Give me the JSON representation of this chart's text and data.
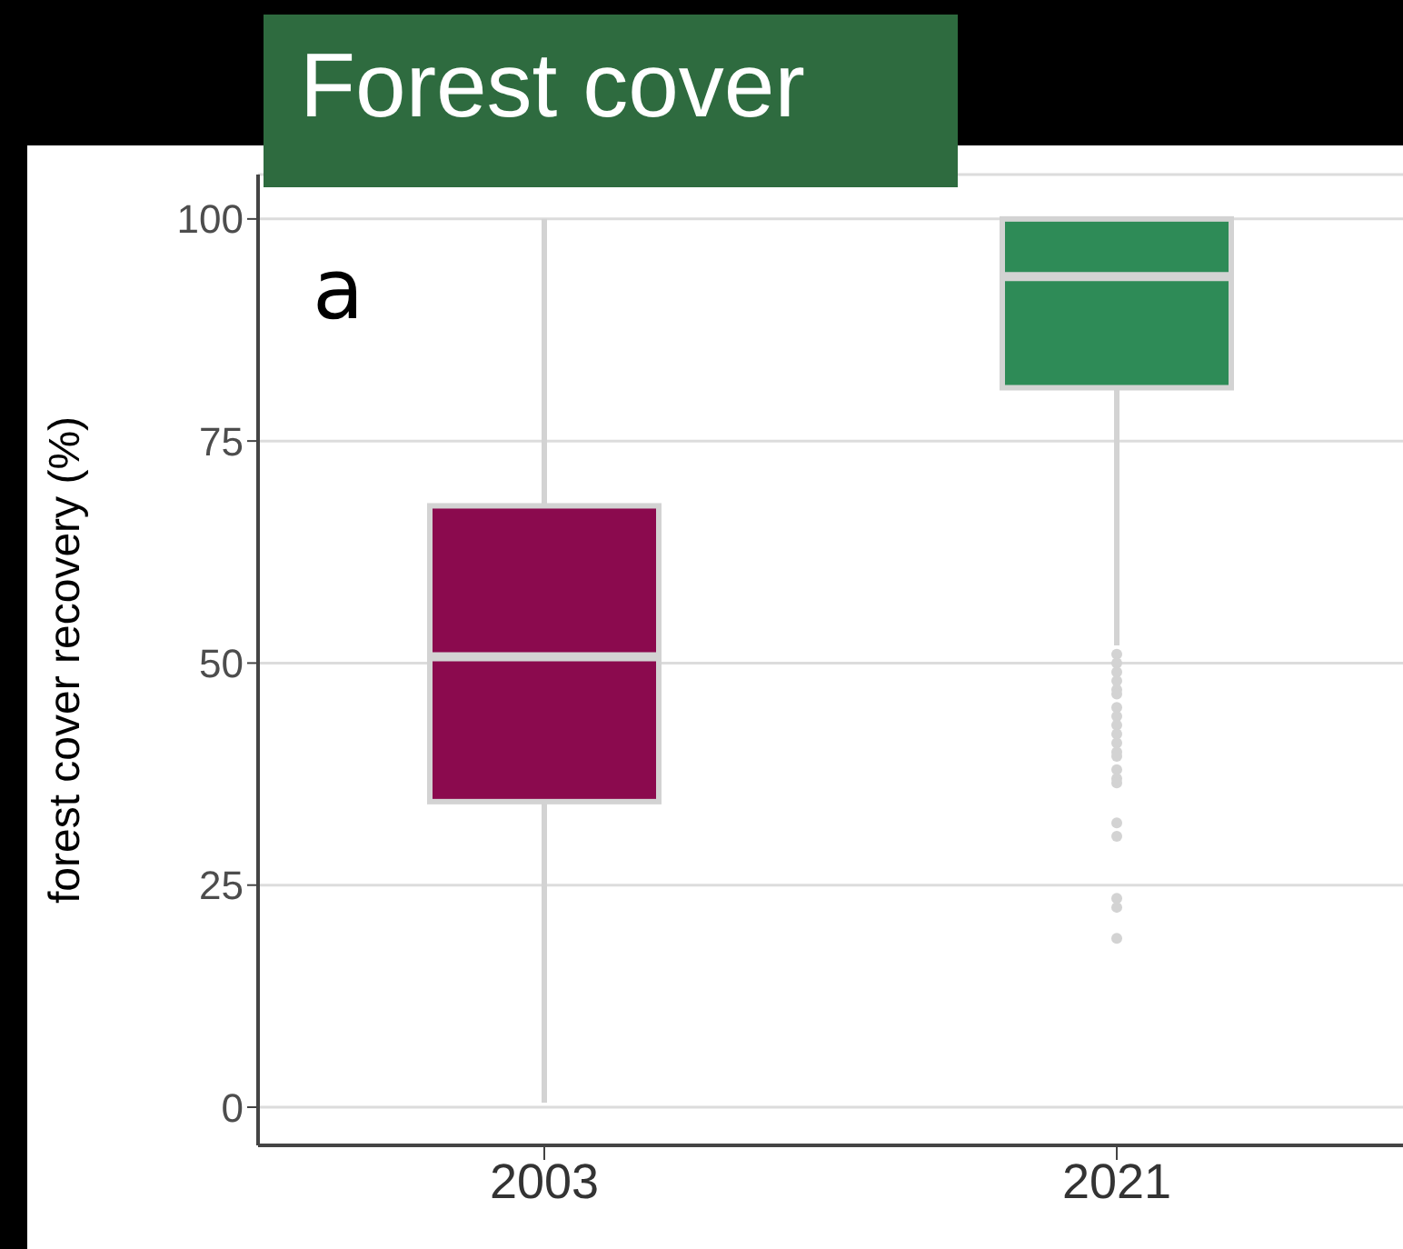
{
  "chart_data": {
    "type": "box",
    "title": "Forest cover",
    "ylabel": "forest cover recovery (%)",
    "categories": [
      "2003",
      "2021"
    ],
    "colors": [
      "#8b0a4e",
      "#2e8b57"
    ],
    "boxes": [
      {
        "low": 0.5,
        "q1": 34.4,
        "median": 50.7,
        "q3": 67.7,
        "high": 100
      },
      {
        "low": 52,
        "q1": 81,
        "median": 93.5,
        "q3": 100,
        "high": 100,
        "outliers": [
          51,
          50,
          49,
          48,
          47,
          46.5,
          45,
          44,
          43,
          42,
          41,
          40,
          39.5,
          38,
          37,
          36.5,
          32,
          30.5,
          23.5,
          22.5,
          19
        ]
      }
    ],
    "ylim": [
      -4.3,
      105
    ],
    "yticks": [
      0,
      25,
      50,
      75,
      100
    ],
    "grid": "y",
    "annotations": [
      "a"
    ]
  }
}
